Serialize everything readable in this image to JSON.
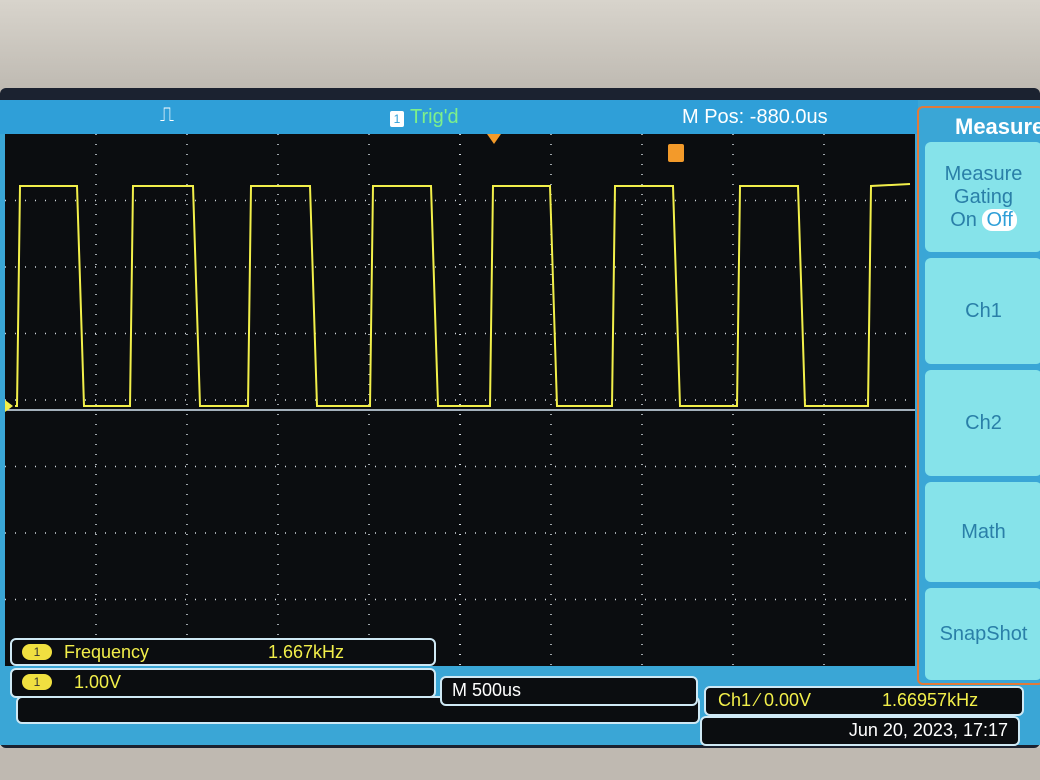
{
  "topbar": {
    "trigger_status": "Trig'd",
    "trigger_badge": "1",
    "m_pos": "M Pos: -880.0us"
  },
  "menu": {
    "title": "Measure",
    "gating_label": "Measure Gating",
    "gating_on": "On",
    "gating_off": "Off",
    "items": [
      "Ch1",
      "Ch2",
      "Math",
      "SnapShot"
    ]
  },
  "measurement": {
    "channel": "1",
    "name": "Frequency",
    "value": "1.667kHz"
  },
  "channel_scale": {
    "channel": "1",
    "value": "1.00V"
  },
  "timebase": "M 500us",
  "trigger_info": {
    "source": "Ch1 ⁄ 0.00V",
    "frequency": "1.66957kHz"
  },
  "datetime": "Jun 20, 2023, 17:17",
  "colors": {
    "ch1": "#f2ef4a",
    "accent": "#2f9fd8",
    "menu_button": "#86e3ea",
    "trigger_marker": "#f39a2a"
  }
}
